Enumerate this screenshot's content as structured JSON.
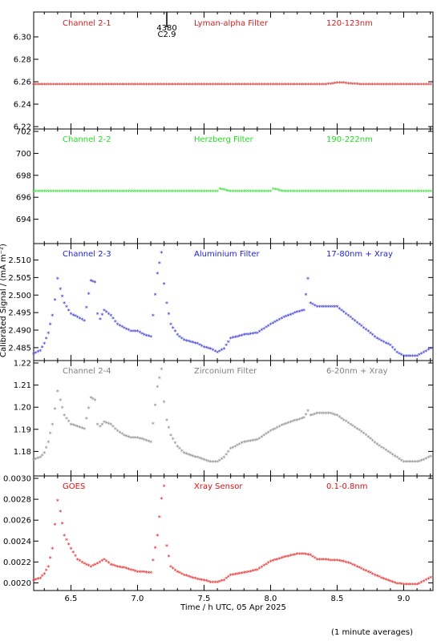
{
  "chart_data": [
    {
      "type": "scatter",
      "channel_label": "Channel 2-1",
      "filter_label": "Lyman-alpha Filter",
      "band_label": "120-123nm",
      "color": "#cc2222",
      "ylim": [
        6.22,
        6.32
      ],
      "yticks": [
        "6.22",
        "6.24",
        "6.26",
        "6.28",
        "6.30"
      ],
      "flare_label": [
        "4380",
        "C2.9"
      ],
      "series": [
        {
          "x": [
            6.22,
            6.3,
            6.4,
            6.5,
            6.6,
            6.7,
            6.8,
            6.9,
            7.0,
            7.1,
            7.2,
            7.3,
            7.4,
            7.5,
            7.6,
            7.7,
            7.8,
            7.9,
            8.0,
            8.1,
            8.2,
            8.3,
            8.4,
            8.45,
            8.5,
            8.55,
            8.6,
            8.7,
            8.8,
            8.9,
            9.0,
            9.1,
            9.22
          ],
          "y": [
            6.257,
            6.257,
            6.257,
            6.257,
            6.257,
            6.257,
            6.257,
            6.257,
            6.257,
            6.257,
            6.257,
            6.257,
            6.257,
            6.257,
            6.257,
            6.257,
            6.257,
            6.257,
            6.257,
            6.257,
            6.257,
            6.257,
            6.257,
            6.2575,
            6.2585,
            6.2585,
            6.2578,
            6.257,
            6.257,
            6.257,
            6.257,
            6.257,
            6.257
          ]
        }
      ]
    },
    {
      "type": "scatter",
      "channel_label": "Channel 2-2",
      "filter_label": "Herzberg Filter",
      "band_label": "190-222nm",
      "color": "#22dd22",
      "ylim": [
        692,
        702
      ],
      "yticks": [
        "694",
        "696",
        "698",
        "700",
        "702"
      ],
      "series": [
        {
          "x": [
            6.22,
            6.3,
            6.4,
            6.5,
            6.6,
            6.7,
            6.8,
            6.9,
            7.0,
            7.1,
            7.2,
            7.3,
            7.4,
            7.5,
            7.6,
            7.62,
            7.7,
            7.8,
            7.9,
            8.0,
            8.02,
            8.1,
            8.2,
            8.3,
            8.4,
            8.5,
            8.6,
            8.7,
            8.8,
            8.9,
            9.0,
            9.1,
            9.22
          ],
          "y": [
            696.5,
            696.5,
            696.5,
            696.5,
            696.5,
            696.5,
            696.5,
            696.5,
            696.5,
            696.5,
            696.5,
            696.5,
            696.5,
            696.5,
            696.5,
            696.7,
            696.5,
            696.5,
            696.5,
            696.5,
            696.7,
            696.5,
            696.5,
            696.5,
            696.5,
            696.5,
            696.5,
            696.5,
            696.5,
            696.5,
            696.5,
            696.5,
            696.5
          ]
        }
      ]
    },
    {
      "type": "scatter",
      "channel_label": "Channel 2-3",
      "filter_label": "Aluminium Filter",
      "band_label": "17-80nm + Xray",
      "color": "#2222cc",
      "ylim": [
        2.482,
        2.514
      ],
      "yticks": [
        "2.485",
        "2.490",
        "2.495",
        "2.500",
        "2.505",
        "2.510"
      ],
      "series": [
        {
          "x": [
            6.22,
            6.27,
            6.3,
            6.33,
            6.36,
            6.38,
            6.4,
            6.42,
            6.45,
            6.5,
            6.55,
            6.6,
            6.65,
            6.68,
            6.7,
            6.72,
            6.75,
            6.8,
            6.85,
            6.9,
            6.95,
            7.0,
            7.05,
            7.1,
            7.15,
            7.18,
            7.2,
            7.22,
            7.25,
            7.3,
            7.35,
            7.4,
            7.45,
            7.5,
            7.55,
            7.6,
            7.65,
            7.7,
            7.8,
            7.9,
            8.0,
            8.1,
            8.2,
            8.25,
            8.28,
            8.3,
            8.35,
            8.4,
            8.45,
            8.5,
            8.55,
            8.6,
            8.7,
            8.8,
            8.9,
            8.95,
            9.0,
            9.05,
            9.1,
            9.15,
            9.22
          ],
          "y": [
            2.483,
            2.484,
            2.486,
            2.489,
            2.494,
            2.4985,
            2.5045,
            2.5015,
            2.4975,
            2.4945,
            2.4935,
            2.4925,
            2.504,
            2.5035,
            2.4945,
            2.493,
            2.4955,
            2.494,
            2.4915,
            2.4905,
            2.4895,
            2.4895,
            2.4885,
            2.488,
            2.506,
            2.512,
            2.503,
            2.4975,
            2.4915,
            2.4885,
            2.487,
            2.4865,
            2.486,
            2.485,
            2.4845,
            2.4835,
            2.4845,
            2.4875,
            2.4885,
            2.489,
            2.4915,
            2.4935,
            2.495,
            2.4955,
            2.5045,
            2.4975,
            2.4965,
            2.4965,
            2.4965,
            2.4965,
            2.495,
            2.4935,
            2.4905,
            2.4875,
            2.4855,
            2.4835,
            2.4825,
            2.4825,
            2.4825,
            2.4835,
            2.485
          ]
        }
      ]
    },
    {
      "type": "scatter",
      "channel_label": "Channel 2-4",
      "filter_label": "Zirconium Filter",
      "band_label": "6-20nm + Xray",
      "color": "#808080",
      "ylim": [
        1.17,
        1.22
      ],
      "yticks": [
        "1.18",
        "1.19",
        "1.20",
        "1.21",
        "1.22"
      ],
      "series": [
        {
          "x": [
            6.22,
            6.27,
            6.3,
            6.33,
            6.36,
            6.38,
            6.4,
            6.42,
            6.45,
            6.5,
            6.55,
            6.6,
            6.65,
            6.68,
            6.7,
            6.72,
            6.75,
            6.8,
            6.85,
            6.9,
            6.95,
            7.0,
            7.05,
            7.1,
            7.15,
            7.18,
            7.2,
            7.22,
            7.25,
            7.3,
            7.35,
            7.4,
            7.45,
            7.5,
            7.55,
            7.6,
            7.65,
            7.7,
            7.8,
            7.9,
            8.0,
            8.1,
            8.2,
            8.25,
            8.28,
            8.3,
            8.35,
            8.4,
            8.45,
            8.5,
            8.55,
            8.6,
            8.7,
            8.8,
            8.9,
            8.95,
            9.0,
            9.05,
            9.1,
            9.15,
            9.22
          ],
          "y": [
            1.176,
            1.177,
            1.179,
            1.184,
            1.192,
            1.199,
            1.207,
            1.203,
            1.196,
            1.192,
            1.191,
            1.19,
            1.204,
            1.203,
            1.192,
            1.191,
            1.193,
            1.192,
            1.189,
            1.187,
            1.186,
            1.186,
            1.185,
            1.184,
            1.209,
            1.217,
            1.202,
            1.194,
            1.187,
            1.182,
            1.179,
            1.178,
            1.177,
            1.176,
            1.175,
            1.175,
            1.177,
            1.181,
            1.184,
            1.185,
            1.189,
            1.192,
            1.194,
            1.195,
            1.198,
            1.196,
            1.197,
            1.197,
            1.197,
            1.196,
            1.194,
            1.192,
            1.188,
            1.183,
            1.179,
            1.177,
            1.175,
            1.175,
            1.175,
            1.176,
            1.178
          ]
        }
      ]
    },
    {
      "type": "scatter",
      "channel_label": "GOES",
      "filter_label": "Xray Sensor",
      "band_label": "0.1-0.8nm",
      "color": "#dd1111",
      "ylim": [
        0.00195,
        0.003
      ],
      "yticks": [
        "0.0020",
        "0.0022",
        "0.0024",
        "0.0026",
        "0.0028",
        "0.0030"
      ],
      "series": [
        {
          "x": [
            6.22,
            6.27,
            6.3,
            6.33,
            6.36,
            6.38,
            6.4,
            6.42,
            6.45,
            6.5,
            6.55,
            6.6,
            6.65,
            6.7,
            6.75,
            6.8,
            6.85,
            6.9,
            6.95,
            7.0,
            7.05,
            7.1,
            7.15,
            7.18,
            7.2,
            7.22,
            7.25,
            7.3,
            7.35,
            7.4,
            7.45,
            7.5,
            7.55,
            7.6,
            7.65,
            7.7,
            7.8,
            7.9,
            8.0,
            8.1,
            8.2,
            8.25,
            8.3,
            8.35,
            8.4,
            8.45,
            8.5,
            8.55,
            8.6,
            8.7,
            8.8,
            8.9,
            8.95,
            9.0,
            9.05,
            9.1,
            9.15,
            9.22
          ],
          "y": [
            0.00202,
            0.00204,
            0.00208,
            0.00215,
            0.00232,
            0.00255,
            0.00278,
            0.00268,
            0.00245,
            0.00232,
            0.00222,
            0.00218,
            0.00215,
            0.00218,
            0.00222,
            0.00217,
            0.00215,
            0.00214,
            0.00212,
            0.0021,
            0.0021,
            0.00209,
            0.00245,
            0.0028,
            0.00292,
            0.00235,
            0.00215,
            0.0021,
            0.00207,
            0.00205,
            0.00203,
            0.00202,
            0.002,
            0.002,
            0.00202,
            0.00207,
            0.00209,
            0.00212,
            0.0022,
            0.00224,
            0.00227,
            0.00227,
            0.00226,
            0.00222,
            0.00222,
            0.00221,
            0.00221,
            0.0022,
            0.00218,
            0.00212,
            0.00206,
            0.00201,
            0.00199,
            0.00198,
            0.00198,
            0.00198,
            0.00201,
            0.00206
          ]
        }
      ]
    }
  ],
  "axes": {
    "xlim": [
      6.22,
      9.22
    ],
    "xticks": [
      "6.5",
      "7.0",
      "7.5",
      "8.0",
      "8.5",
      "9.0"
    ],
    "xlabel": "Time / h UTC, 05 Apr 2025",
    "ylabel": "Calibrated Signal / (mA m⁻²)",
    "marker": "*",
    "grid": false
  },
  "footnote": "(1 minute averages)"
}
